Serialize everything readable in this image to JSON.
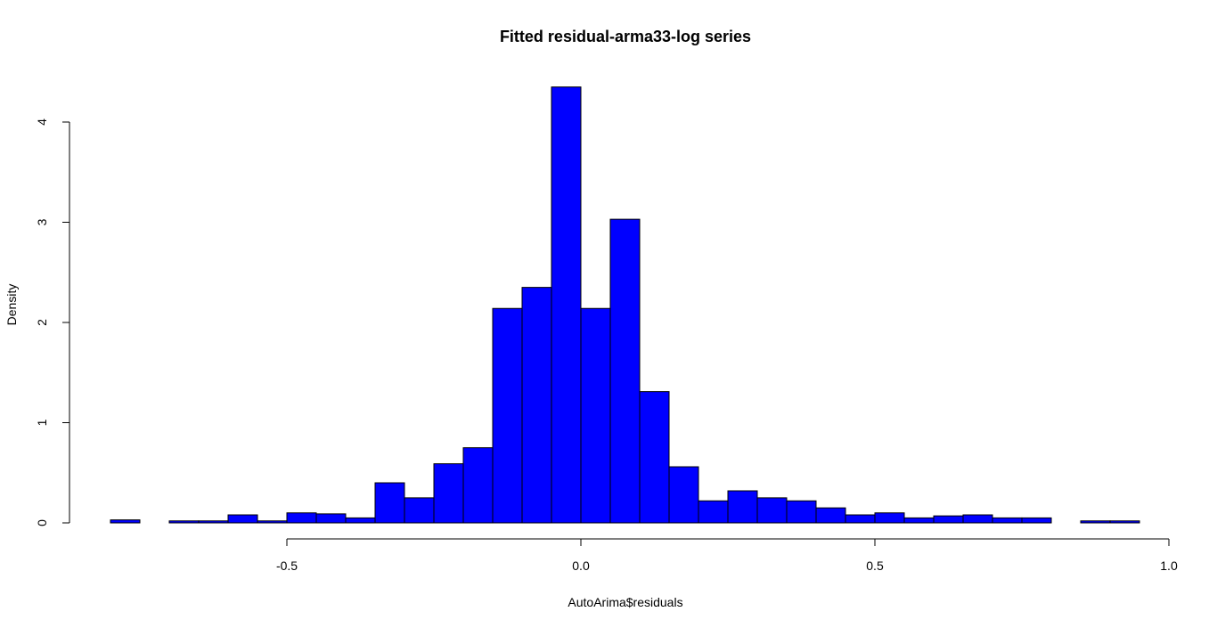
{
  "chart_data": {
    "type": "bar",
    "title": "Fitted residual-arma33-log series",
    "xlabel": "AutoArima$residuals",
    "ylabel": "Density",
    "bar_color": "#0000ff",
    "border_color": "#000000",
    "xlim": [
      -0.8,
      1.0
    ],
    "ylim": [
      0,
      4.4
    ],
    "x_ticks": [
      -0.5,
      0.0,
      0.5,
      1.0
    ],
    "x_tick_labels": [
      "-0.5",
      "0.0",
      "0.5",
      "1.0"
    ],
    "y_ticks": [
      0,
      1,
      2,
      3,
      4
    ],
    "y_tick_labels": [
      "0",
      "1",
      "2",
      "3",
      "4"
    ],
    "bins": [
      {
        "x0": -0.8,
        "x1": -0.75,
        "density": 0.03
      },
      {
        "x0": -0.75,
        "x1": -0.7,
        "density": 0.0
      },
      {
        "x0": -0.7,
        "x1": -0.65,
        "density": 0.02
      },
      {
        "x0": -0.65,
        "x1": -0.6,
        "density": 0.02
      },
      {
        "x0": -0.6,
        "x1": -0.55,
        "density": 0.08
      },
      {
        "x0": -0.55,
        "x1": -0.5,
        "density": 0.02
      },
      {
        "x0": -0.5,
        "x1": -0.45,
        "density": 0.1
      },
      {
        "x0": -0.45,
        "x1": -0.4,
        "density": 0.09
      },
      {
        "x0": -0.4,
        "x1": -0.35,
        "density": 0.05
      },
      {
        "x0": -0.35,
        "x1": -0.3,
        "density": 0.4
      },
      {
        "x0": -0.3,
        "x1": -0.25,
        "density": 0.25
      },
      {
        "x0": -0.25,
        "x1": -0.2,
        "density": 0.59
      },
      {
        "x0": -0.2,
        "x1": -0.15,
        "density": 0.75
      },
      {
        "x0": -0.15,
        "x1": -0.1,
        "density": 2.14
      },
      {
        "x0": -0.1,
        "x1": -0.05,
        "density": 2.35
      },
      {
        "x0": -0.05,
        "x1": 0.0,
        "density": 4.35
      },
      {
        "x0": 0.0,
        "x1": 0.05,
        "density": 2.14
      },
      {
        "x0": 0.05,
        "x1": 0.1,
        "density": 3.03
      },
      {
        "x0": 0.1,
        "x1": 0.15,
        "density": 1.31
      },
      {
        "x0": 0.15,
        "x1": 0.2,
        "density": 0.56
      },
      {
        "x0": 0.2,
        "x1": 0.25,
        "density": 0.22
      },
      {
        "x0": 0.25,
        "x1": 0.3,
        "density": 0.32
      },
      {
        "x0": 0.3,
        "x1": 0.35,
        "density": 0.25
      },
      {
        "x0": 0.35,
        "x1": 0.4,
        "density": 0.22
      },
      {
        "x0": 0.4,
        "x1": 0.45,
        "density": 0.15
      },
      {
        "x0": 0.45,
        "x1": 0.5,
        "density": 0.08
      },
      {
        "x0": 0.5,
        "x1": 0.55,
        "density": 0.1
      },
      {
        "x0": 0.55,
        "x1": 0.6,
        "density": 0.05
      },
      {
        "x0": 0.6,
        "x1": 0.65,
        "density": 0.07
      },
      {
        "x0": 0.65,
        "x1": 0.7,
        "density": 0.08
      },
      {
        "x0": 0.7,
        "x1": 0.75,
        "density": 0.05
      },
      {
        "x0": 0.75,
        "x1": 0.8,
        "density": 0.05
      },
      {
        "x0": 0.8,
        "x1": 0.85,
        "density": 0.0
      },
      {
        "x0": 0.85,
        "x1": 0.9,
        "density": 0.02
      },
      {
        "x0": 0.9,
        "x1": 0.95,
        "density": 0.02
      }
    ]
  }
}
